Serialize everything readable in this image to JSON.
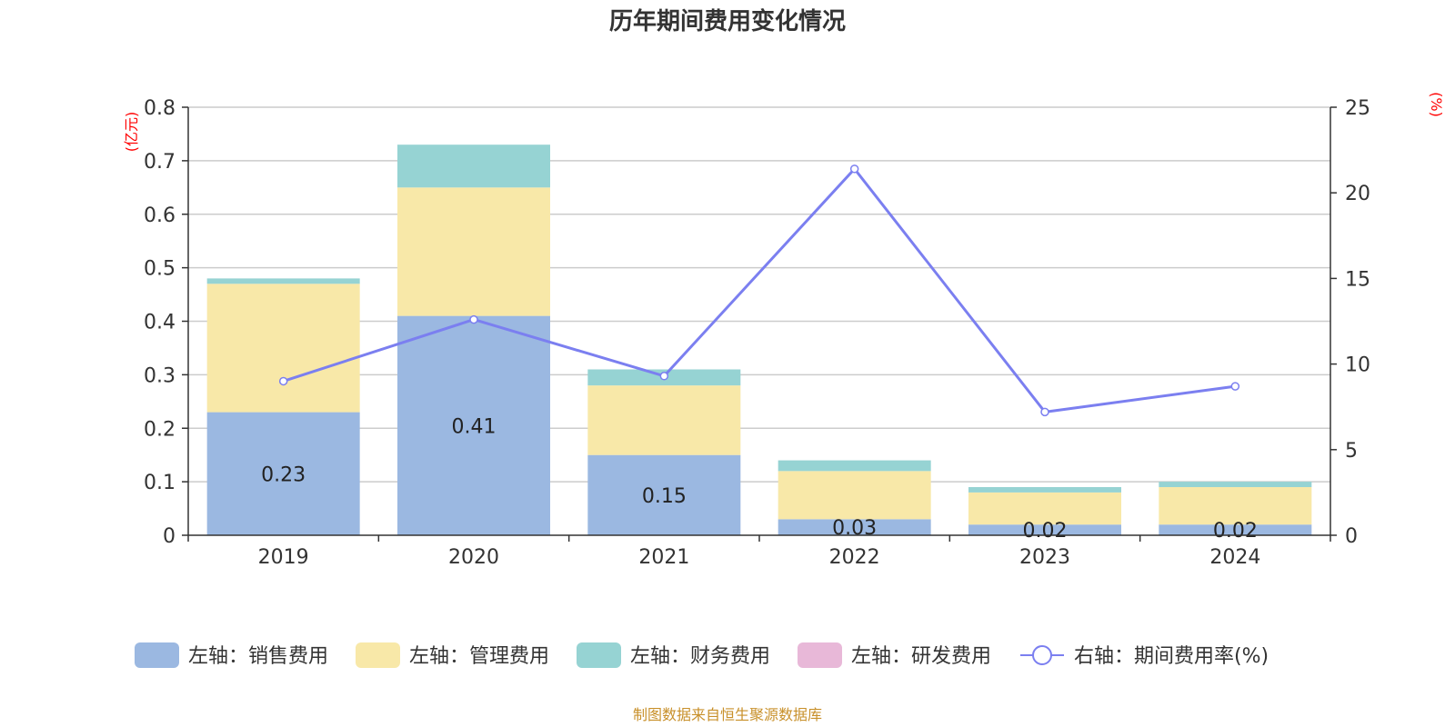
{
  "chart_data": {
    "type": "bar",
    "title": "历年期间费用变化情况",
    "categories": [
      "2019",
      "2020",
      "2021",
      "2022",
      "2023",
      "2024"
    ],
    "left_axis": {
      "unit": "(亿元)",
      "ylim": [
        0,
        0.8
      ],
      "ticks": [
        "0",
        "0.1",
        "0.2",
        "0.3",
        "0.4",
        "0.5",
        "0.6",
        "0.7",
        "0.8"
      ]
    },
    "right_axis": {
      "unit": "(%)",
      "ylim": [
        0,
        25
      ],
      "ticks": [
        "0",
        "5",
        "10",
        "15",
        "20",
        "25"
      ]
    },
    "series": [
      {
        "name": "左轴：销售费用",
        "type": "bar",
        "stack": true,
        "color": "#9bb8e1",
        "values": [
          0.23,
          0.41,
          0.15,
          0.03,
          0.02,
          0.02
        ],
        "labels": [
          "0.23",
          "0.41",
          "0.15",
          "0.03",
          "0.02",
          "0.02"
        ]
      },
      {
        "name": "左轴：管理费用",
        "type": "bar",
        "stack": true,
        "color": "#f8e8a8",
        "values": [
          0.24,
          0.24,
          0.13,
          0.09,
          0.06,
          0.07
        ]
      },
      {
        "name": "左轴：财务费用",
        "type": "bar",
        "stack": true,
        "color": "#96d3d3",
        "values": [
          0.01,
          0.08,
          0.03,
          0.02,
          0.01,
          0.01
        ]
      },
      {
        "name": "左轴：研发费用",
        "type": "bar",
        "stack": true,
        "color": "#e8b8d8",
        "values": [
          0,
          0,
          0,
          0,
          0,
          0
        ]
      },
      {
        "name": "右轴：期间费用率(%)",
        "type": "line",
        "axis": "right",
        "color": "#7b7ff0",
        "values": [
          9.0,
          12.6,
          9.3,
          21.4,
          7.2,
          8.7
        ]
      }
    ],
    "grid": true,
    "legend_position": "bottom"
  },
  "footer": {
    "source": "制图数据来自恒生聚源数据库"
  }
}
